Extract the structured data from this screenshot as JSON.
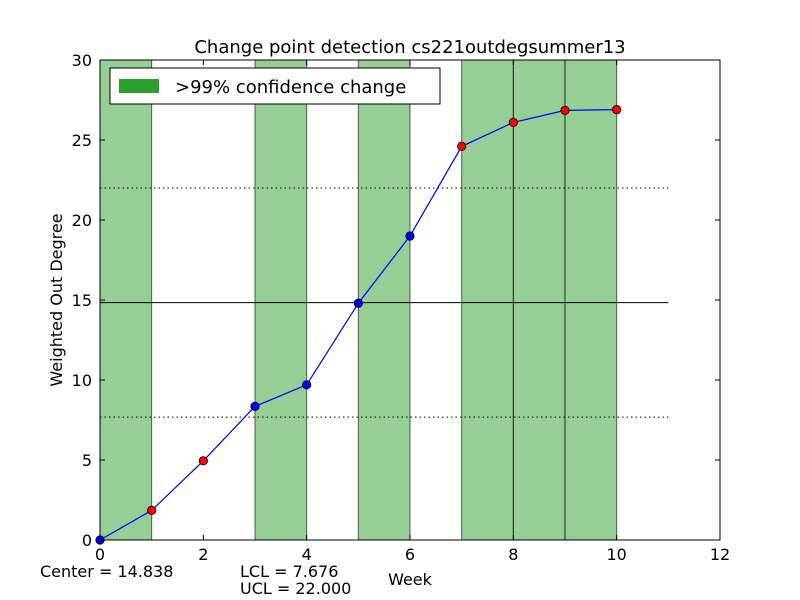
{
  "chart_data": {
    "type": "line",
    "title": "Change point detection cs221outdegsummer13",
    "xlabel": "Week",
    "ylabel": "Weighted Out Degree",
    "xlim": [
      0,
      12
    ],
    "ylim": [
      0,
      30
    ],
    "xticks": [
      "0",
      "2",
      "4",
      "6",
      "8",
      "10",
      "12"
    ],
    "yticks": [
      "0",
      "5",
      "10",
      "15",
      "20",
      "25",
      "30"
    ],
    "grid": false,
    "legend": {
      "position": "top-left",
      "entries": [
        {
          "label": ">99% confidence change",
          "color": "#2ca02c"
        }
      ]
    },
    "series": [
      {
        "x": [
          0,
          1,
          2,
          3,
          4,
          5,
          6,
          7,
          8,
          9,
          10
        ],
        "y": [
          0.0,
          1.85,
          4.95,
          8.35,
          9.7,
          14.8,
          19.0,
          24.6,
          26.1,
          26.85,
          26.9
        ],
        "color": "#0000ff",
        "point_colors": [
          "blue",
          "red",
          "red",
          "blue",
          "blue",
          "blue",
          "blue",
          "red",
          "red",
          "red",
          "red"
        ]
      }
    ],
    "change_regions": [
      [
        0,
        1
      ],
      [
        3,
        4
      ],
      [
        5,
        6
      ],
      [
        7,
        8
      ],
      [
        8,
        9
      ],
      [
        9,
        10
      ]
    ],
    "center_line": 14.838,
    "lcl_line": 7.676,
    "ucl_line": 22.0,
    "reference_line_xmax": 11,
    "annotations": {
      "center": "Center = 14.838",
      "lcl": "LCL = 7.676",
      "ucl": "UCL = 22.000"
    }
  }
}
